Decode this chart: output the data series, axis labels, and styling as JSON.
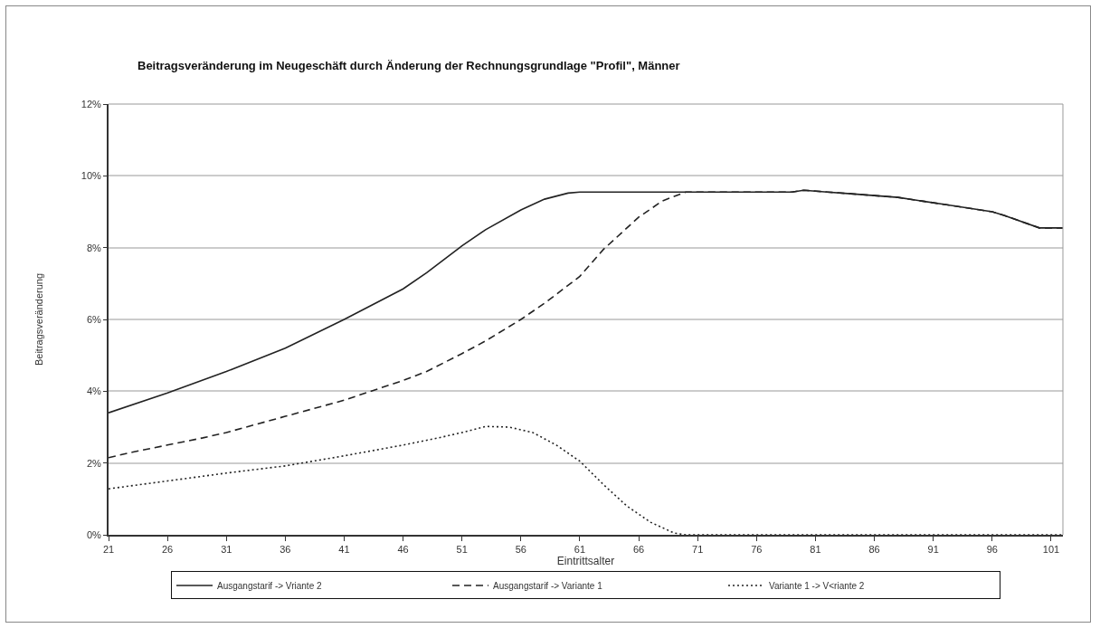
{
  "chart_data": {
    "type": "line",
    "title": "Beitragsveränderung im Neugeschäft durch Änderung der Rechnungsgrundlage \"Profil\", Männer",
    "xlabel": "Eintrittsalter",
    "ylabel": "Beitragsveränderung",
    "xlim": [
      21,
      102
    ],
    "xticks": [
      21,
      26,
      31,
      36,
      41,
      46,
      51,
      56,
      61,
      66,
      71,
      76,
      81,
      86,
      91,
      96,
      101
    ],
    "ylim": [
      0,
      12
    ],
    "yticks": [
      {
        "value": 0,
        "label": "0%"
      },
      {
        "value": 2,
        "label": "2%"
      },
      {
        "value": 4,
        "label": "4%"
      },
      {
        "value": 6,
        "label": "6%"
      },
      {
        "value": 8,
        "label": "8%"
      },
      {
        "value": 10,
        "label": "10%"
      },
      {
        "value": 12,
        "label": "12%"
      }
    ],
    "grid": "y",
    "legend": "bottom",
    "marker": "none",
    "series": [
      {
        "name": "Ausgangstarif -> Vriante 2",
        "color": "#222222",
        "line_style": "solid",
        "x": [
          21,
          26,
          31,
          36,
          41,
          46,
          48,
          51,
          53,
          56,
          58,
          60,
          61,
          79,
          80,
          82,
          84,
          86,
          88,
          90,
          92,
          94,
          96,
          97,
          100,
          102
        ],
        "values": [
          3.4,
          3.95,
          4.55,
          5.2,
          6.0,
          6.85,
          7.3,
          8.05,
          8.5,
          9.05,
          9.35,
          9.52,
          9.55,
          9.55,
          9.6,
          9.55,
          9.5,
          9.45,
          9.4,
          9.3,
          9.2,
          9.1,
          9.0,
          8.9,
          8.55,
          8.55
        ]
      },
      {
        "name": "Ausgangstarif -> Variante 1",
        "color": "#222222",
        "line_style": "dashed",
        "x": [
          21,
          23,
          26,
          29,
          31,
          36,
          41,
          46,
          48,
          51,
          53,
          56,
          58,
          61,
          63,
          66,
          68,
          70,
          79,
          80,
          82,
          84,
          86,
          88,
          90,
          92,
          94,
          96,
          97,
          100,
          102
        ],
        "values": [
          2.15,
          2.3,
          2.5,
          2.7,
          2.85,
          3.3,
          3.75,
          4.3,
          4.55,
          5.05,
          5.4,
          6.0,
          6.45,
          7.2,
          7.95,
          8.85,
          9.3,
          9.55,
          9.55,
          9.6,
          9.55,
          9.5,
          9.45,
          9.4,
          9.3,
          9.2,
          9.1,
          9.0,
          8.9,
          8.55,
          8.55
        ]
      },
      {
        "name": "Variante 1 -> V<riante 2",
        "color": "#222222",
        "line_style": "dotted",
        "x": [
          21,
          26,
          31,
          36,
          41,
          46,
          49,
          51,
          53,
          55,
          57,
          59,
          61,
          63,
          65,
          67,
          69,
          70,
          102
        ],
        "values": [
          1.28,
          1.5,
          1.72,
          1.92,
          2.2,
          2.5,
          2.7,
          2.85,
          3.02,
          3.0,
          2.85,
          2.5,
          2.05,
          1.4,
          0.8,
          0.35,
          0.05,
          0,
          0
        ]
      }
    ]
  }
}
